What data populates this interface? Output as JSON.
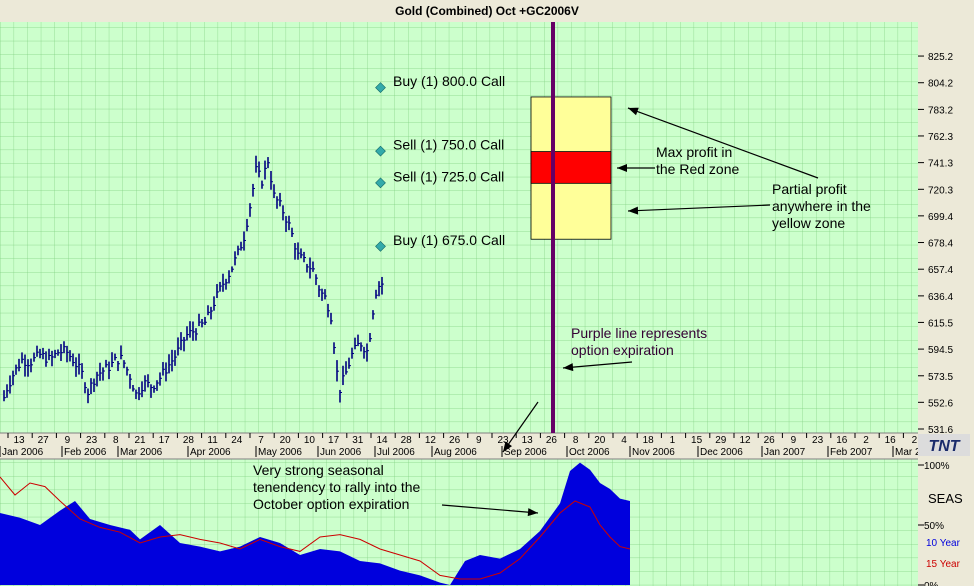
{
  "window": {
    "title": "Gold (Combined) Oct +GC2006V"
  },
  "chart_data": [
    {
      "type": "bar",
      "subtype": "ohlc-price",
      "title": "Gold (Combined) Oct +GC2006V",
      "grid": true,
      "ylim": [
        531.6,
        846.5
      ],
      "y_ticks": [
        "825.2",
        "804.2",
        "783.2",
        "762.3",
        "741.3",
        "720.3",
        "699.4",
        "678.4",
        "657.4",
        "636.4",
        "615.5",
        "594.5",
        "573.5",
        "552.6",
        "531.6"
      ],
      "x_day_ticks": [
        "13",
        "27",
        "9",
        "23",
        "8",
        "21",
        "17",
        "28",
        "11",
        "24",
        "7",
        "20",
        "10",
        "17",
        "31",
        "14",
        "28",
        "12",
        "26",
        "9",
        "23",
        "13",
        "26",
        "8",
        "20",
        "4",
        "18",
        "1",
        "15",
        "29",
        "12",
        "26",
        "9",
        "23",
        "16",
        "2",
        "16",
        "2"
      ],
      "x_month_labels": [
        "Jan 2006",
        "Feb 2006",
        "Mar 2006",
        "Apr 2006",
        "May 2006",
        "Jun 2006",
        "Jul 2006",
        "Aug 2006",
        "Sep 2006",
        "Oct 2006",
        "Nov 2006",
        "Dec 2006",
        "Jan 2007",
        "Feb 2007",
        "Mar 2"
      ],
      "price_path": [
        [
          0,
          545
        ],
        [
          6,
          562
        ],
        [
          14,
          576
        ],
        [
          22,
          586
        ],
        [
          30,
          584
        ],
        [
          40,
          590
        ],
        [
          50,
          586
        ],
        [
          58,
          592
        ],
        [
          66,
          593
        ],
        [
          74,
          585
        ],
        [
          82,
          575
        ],
        [
          88,
          561
        ],
        [
          96,
          574
        ],
        [
          104,
          578
        ],
        [
          110,
          581
        ],
        [
          116,
          586
        ],
        [
          122,
          587
        ],
        [
          130,
          573
        ],
        [
          136,
          559
        ],
        [
          144,
          568
        ],
        [
          152,
          565
        ],
        [
          160,
          572
        ],
        [
          168,
          581
        ],
        [
          176,
          590
        ],
        [
          186,
          605
        ],
        [
          196,
          610
        ],
        [
          206,
          616
        ],
        [
          214,
          631
        ],
        [
          222,
          645
        ],
        [
          230,
          655
        ],
        [
          238,
          670
        ],
        [
          244,
          683
        ],
        [
          250,
          707
        ],
        [
          256,
          735
        ],
        [
          262,
          727
        ],
        [
          268,
          743
        ],
        [
          274,
          715
        ],
        [
          282,
          705
        ],
        [
          290,
          690
        ],
        [
          298,
          668
        ],
        [
          306,
          662
        ],
        [
          314,
          656
        ],
        [
          320,
          640
        ],
        [
          326,
          634
        ],
        [
          332,
          618
        ],
        [
          336,
          580
        ],
        [
          340,
          563
        ],
        [
          346,
          576
        ],
        [
          352,
          590
        ],
        [
          360,
          600
        ],
        [
          368,
          592
        ],
        [
          372,
          620
        ],
        [
          376,
          640
        ],
        [
          380,
          646
        ]
      ],
      "option_strikes": [
        {
          "label": "Buy (1) 800.0 Call",
          "price": 800.0
        },
        {
          "label": "Sell (1) 750.0 Call",
          "price": 750.0
        },
        {
          "label": "Sell (1) 725.0 Call",
          "price": 725.0
        },
        {
          "label": "Buy (1) 675.0 Call",
          "price": 675.0
        }
      ],
      "zones": {
        "yellow": [
          681,
          793
        ],
        "red": [
          725,
          750
        ]
      },
      "annotations": [
        "Max profit in\nthe Red zone",
        "Partial profit\nanywhere in the\nyellow zone",
        "Purple line represents\noption expiration",
        "Very strong seasonal\ntenendency to rally into the\nOctober option expiration"
      ],
      "colors": {
        "background": "#ccffcc",
        "grid": "#66cc66",
        "bars": "#000080",
        "markers": "#33aaaa",
        "yellow_zone": "#ffff99",
        "red_zone": "#ff0000",
        "expiration_line": "#660066",
        "annotation_text": "#330033"
      }
    },
    {
      "type": "area",
      "subtype": "seasonal",
      "ylim": [
        0,
        100
      ],
      "y_ticks": [
        "100%",
        "50%",
        "0%"
      ],
      "legend_title": "SEAS",
      "series": [
        {
          "name": "10 Year",
          "color": "#0000dd",
          "fill": true,
          "values": [
            [
              0,
              60
            ],
            [
              20,
              56
            ],
            [
              40,
              50
            ],
            [
              60,
              62
            ],
            [
              75,
              70
            ],
            [
              90,
              55
            ],
            [
              110,
              50
            ],
            [
              130,
              46
            ],
            [
              140,
              38
            ],
            [
              160,
              50
            ],
            [
              180,
              35
            ],
            [
              200,
              32
            ],
            [
              220,
              28
            ],
            [
              240,
              32
            ],
            [
              260,
              40
            ],
            [
              280,
              35
            ],
            [
              300,
              25
            ],
            [
              320,
              30
            ],
            [
              340,
              28
            ],
            [
              360,
              20
            ],
            [
              380,
              18
            ],
            [
              400,
              12
            ],
            [
              420,
              8
            ],
            [
              440,
              2
            ],
            [
              450,
              0
            ],
            [
              465,
              20
            ],
            [
              480,
              25
            ],
            [
              500,
              22
            ],
            [
              520,
              30
            ],
            [
              540,
              45
            ],
            [
              560,
              68
            ],
            [
              570,
              95
            ],
            [
              580,
              102
            ],
            [
              590,
              96
            ],
            [
              600,
              85
            ],
            [
              610,
              80
            ],
            [
              620,
              72
            ],
            [
              630,
              70
            ]
          ]
        },
        {
          "name": "15 Year",
          "color": "#cc0000",
          "fill": false,
          "values": [
            [
              0,
              90
            ],
            [
              15,
              75
            ],
            [
              30,
              85
            ],
            [
              45,
              82
            ],
            [
              60,
              70
            ],
            [
              80,
              55
            ],
            [
              100,
              48
            ],
            [
              120,
              44
            ],
            [
              140,
              35
            ],
            [
              160,
              40
            ],
            [
              180,
              42
            ],
            [
              200,
              38
            ],
            [
              220,
              35
            ],
            [
              240,
              30
            ],
            [
              260,
              38
            ],
            [
              280,
              32
            ],
            [
              300,
              28
            ],
            [
              320,
              40
            ],
            [
              340,
              42
            ],
            [
              360,
              38
            ],
            [
              380,
              30
            ],
            [
              400,
              25
            ],
            [
              420,
              20
            ],
            [
              440,
              8
            ],
            [
              460,
              5
            ],
            [
              480,
              5
            ],
            [
              500,
              10
            ],
            [
              520,
              22
            ],
            [
              540,
              40
            ],
            [
              560,
              60
            ],
            [
              575,
              70
            ],
            [
              590,
              65
            ],
            [
              600,
              50
            ],
            [
              610,
              40
            ],
            [
              620,
              32
            ],
            [
              630,
              30
            ]
          ]
        }
      ]
    }
  ],
  "branding": {
    "logo_text": "TNT"
  }
}
